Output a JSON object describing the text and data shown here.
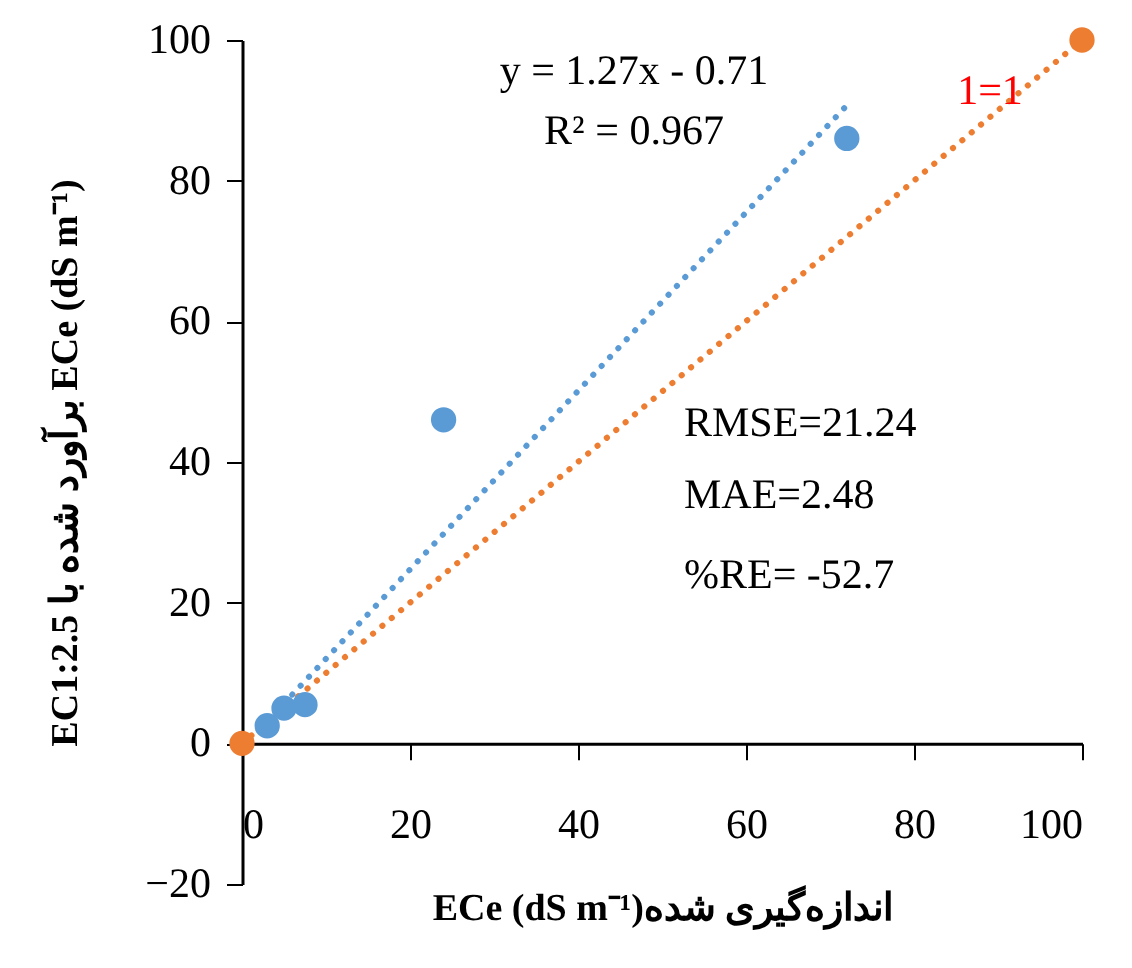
{
  "chart_data": {
    "type": "scatter",
    "xlabel": "ECe (dS m⁻¹)اندازه‌گیری شده",
    "ylabel": "EC1:2.5 برآورد شده با ECe (dS m⁻¹)",
    "xlim": [
      0,
      100
    ],
    "xticks": [
      0,
      20,
      40,
      60,
      80,
      100
    ],
    "ylim": [
      -20,
      100
    ],
    "yticks": [
      -20,
      0,
      20,
      40,
      60,
      80,
      100
    ],
    "series": [
      {
        "type": "line",
        "color": "#5b9bd5",
        "line_style": "dotted",
        "x": [
          1,
          72
        ],
        "values": [
          0.6,
          90.7
        ]
      },
      {
        "type": "line",
        "color": "#ed7d31",
        "line_style": "dotted",
        "x": [
          0,
          100
        ],
        "values": [
          0,
          100
        ]
      },
      {
        "color": "#5b9bd5",
        "marker": "circle",
        "x": [
          3,
          5,
          7.5,
          24,
          72
        ],
        "values": [
          2.5,
          5,
          5.5,
          46,
          86
        ]
      },
      {
        "color": "#ed7d31",
        "marker": "circle",
        "x": [
          0,
          100
        ],
        "values": [
          0,
          100
        ]
      }
    ],
    "annotations": [
      "y = 1.27x - 0.71",
      "R² = 0.967",
      "1=1",
      "RMSE=21.24",
      "MAE=2.48",
      "%RE= -52.7"
    ]
  }
}
